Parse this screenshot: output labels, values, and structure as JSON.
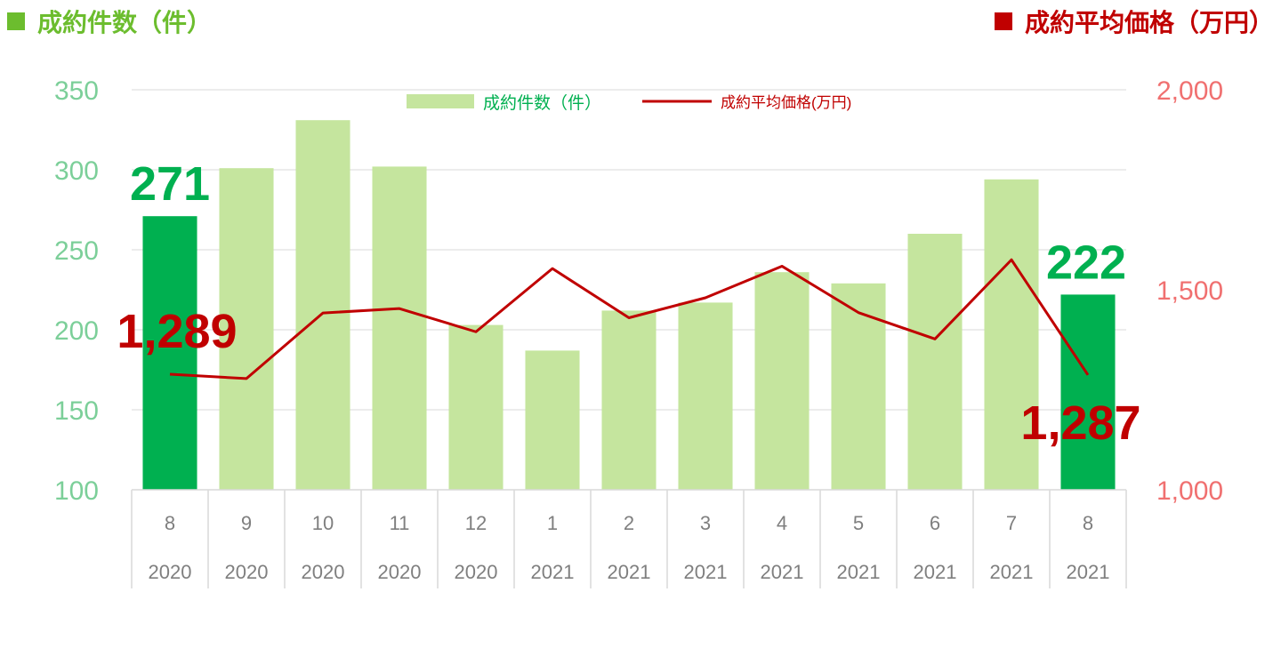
{
  "header": {
    "left_title": "成約件数（件）",
    "right_title": "成約平均価格（万円）"
  },
  "colors": {
    "bar": "#c5e59e",
    "bar_highlight": "#00b050",
    "line": "#c00000",
    "left_axis": "#7ccf99",
    "right_axis": "#f07070",
    "left_header": "#6cbd2e",
    "right_header": "#c00000",
    "grid": "#d9d9d9",
    "category_text": "#7f7f7f"
  },
  "chart_data": {
    "type": "bar",
    "categories": [
      {
        "month": "8",
        "year": "2020"
      },
      {
        "month": "9",
        "year": "2020"
      },
      {
        "month": "10",
        "year": "2020"
      },
      {
        "month": "11",
        "year": "2020"
      },
      {
        "month": "12",
        "year": "2020"
      },
      {
        "month": "1",
        "year": "2021"
      },
      {
        "month": "2",
        "year": "2021"
      },
      {
        "month": "3",
        "year": "2021"
      },
      {
        "month": "4",
        "year": "2021"
      },
      {
        "month": "5",
        "year": "2021"
      },
      {
        "month": "6",
        "year": "2021"
      },
      {
        "month": "7",
        "year": "2021"
      },
      {
        "month": "8",
        "year": "2021"
      }
    ],
    "series": [
      {
        "name": "成約件数（件）",
        "type": "bar",
        "axis": "left",
        "values": [
          271,
          301,
          331,
          302,
          203,
          187,
          212,
          217,
          236,
          229,
          260,
          294,
          222
        ],
        "highlight_indices": [
          0,
          12
        ]
      },
      {
        "name": "成約平均価格(万円)",
        "type": "line",
        "axis": "right",
        "values": [
          1289,
          1278,
          1442,
          1453,
          1395,
          1553,
          1430,
          1480,
          1559,
          1443,
          1377,
          1575,
          1287
        ]
      }
    ],
    "left_axis": {
      "min": 100,
      "max": 350,
      "ticks": [
        "100",
        "150",
        "200",
        "250",
        "300",
        "350"
      ]
    },
    "right_axis": {
      "min": 1000,
      "max": 2000,
      "ticks": [
        "1,000",
        "1,500",
        "2,000"
      ]
    },
    "grid": true,
    "legend_position": "top-center",
    "annotations": [
      {
        "text": "271",
        "series": 0,
        "index": 0,
        "color": "#00b050"
      },
      {
        "text": "222",
        "series": 0,
        "index": 12,
        "color": "#00b050"
      },
      {
        "text": "1,289",
        "series": 1,
        "index": 0,
        "color": "#c00000"
      },
      {
        "text": "1,287",
        "series": 1,
        "index": 12,
        "color": "#c00000"
      }
    ]
  }
}
